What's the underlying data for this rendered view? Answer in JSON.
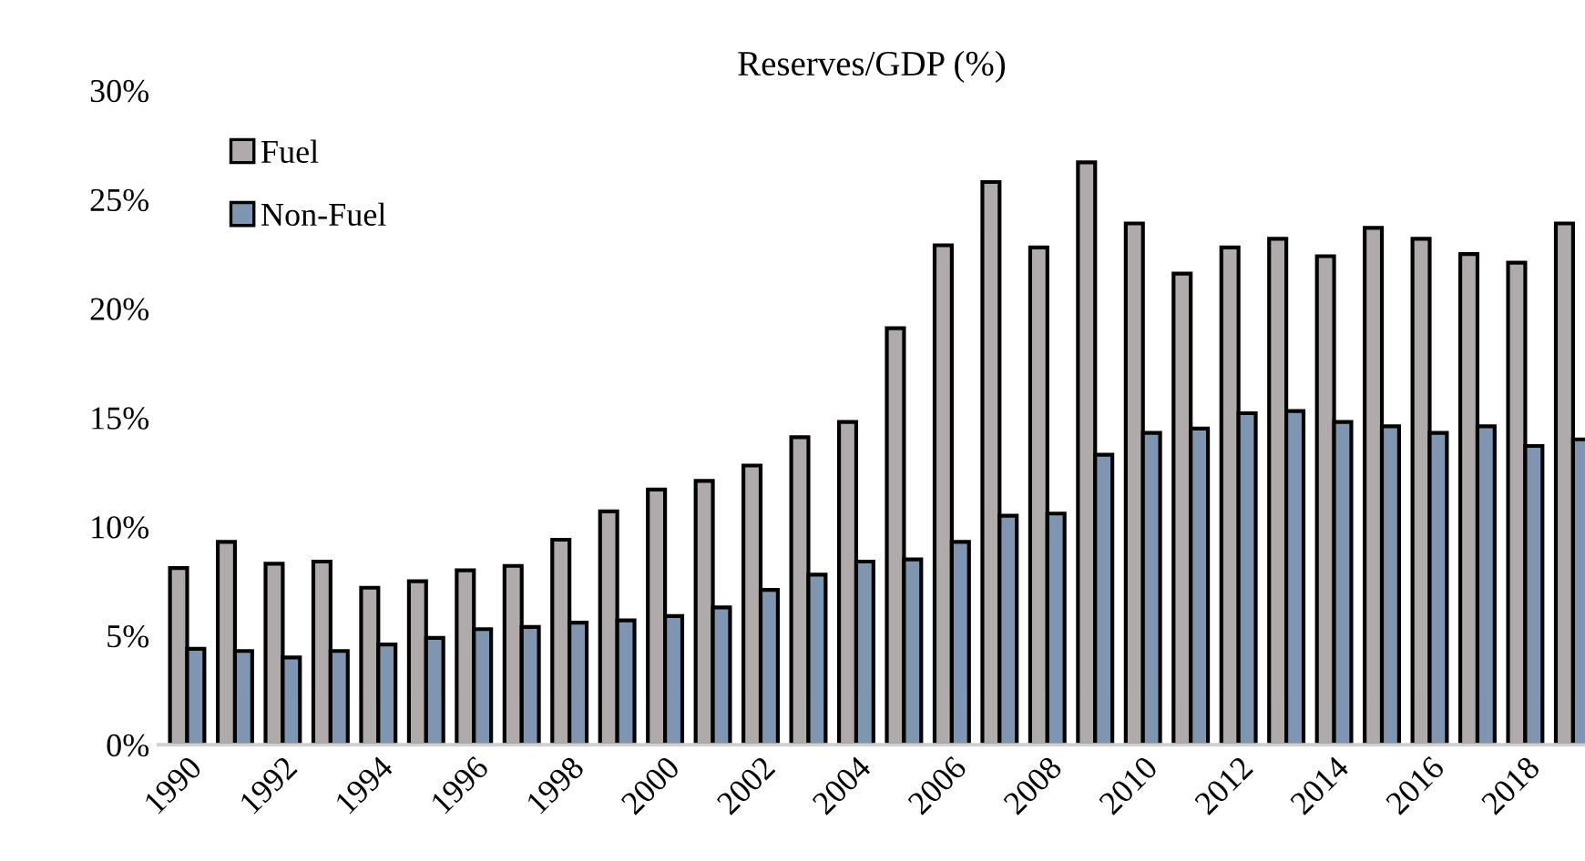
{
  "chart_data": {
    "type": "bar",
    "title": "Reserves/GDP (%)",
    "categories": [
      "1990",
      null,
      "1992",
      null,
      "1994",
      null,
      "1996",
      null,
      "1998",
      null,
      "2000",
      null,
      "2002",
      null,
      "2004",
      null,
      "2006",
      null,
      "2008",
      null,
      "2010",
      null,
      "2012",
      null,
      "2014",
      null,
      "2016",
      null,
      "2018",
      null
    ],
    "series": [
      {
        "name": "Fuel",
        "color": "#b0abaa",
        "values": [
          8.1,
          9.3,
          8.3,
          8.4,
          7.2,
          7.5,
          8.0,
          8.2,
          9.4,
          10.7,
          11.7,
          12.1,
          12.8,
          14.1,
          14.8,
          19.1,
          22.9,
          25.8,
          22.8,
          26.7,
          23.9,
          21.6,
          22.8,
          23.2,
          22.4,
          23.7,
          23.2,
          22.5,
          22.1,
          23.9
        ]
      },
      {
        "name": "Non-Fuel",
        "color": "#7f96b2",
        "values": [
          4.4,
          4.3,
          4.0,
          4.3,
          4.6,
          4.9,
          5.3,
          5.4,
          5.6,
          5.7,
          5.9,
          6.3,
          7.1,
          7.8,
          8.4,
          8.5,
          9.3,
          10.5,
          10.6,
          13.3,
          14.3,
          14.5,
          15.2,
          15.3,
          14.8,
          14.6,
          14.3,
          14.6,
          13.7,
          14.0
        ]
      }
    ],
    "ylim": [
      0,
      30
    ],
    "yticks": [
      {
        "value": 0,
        "label": "0%"
      },
      {
        "value": 5,
        "label": "5%"
      },
      {
        "value": 10,
        "label": "10%"
      },
      {
        "value": 15,
        "label": "15%"
      },
      {
        "value": 20,
        "label": "20%"
      },
      {
        "value": 25,
        "label": "25%"
      },
      {
        "value": 30,
        "label": "30%"
      }
    ],
    "legend": "top left",
    "grid": false
  }
}
